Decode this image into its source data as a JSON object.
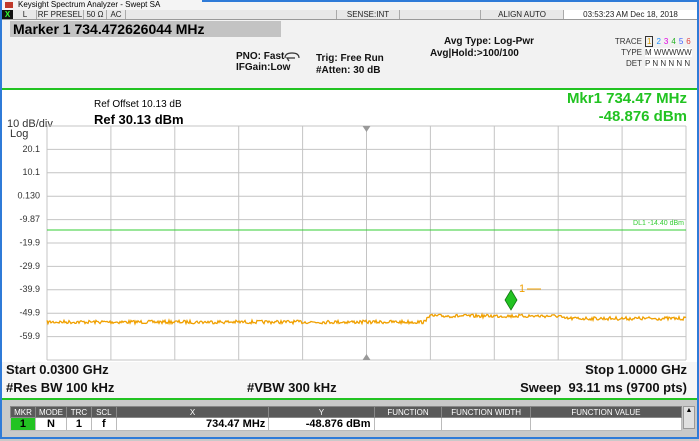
{
  "window": {
    "title": "Keysight Spectrum Analyzer - Swept SA"
  },
  "status_bar": {
    "items": [
      "L",
      "RF PRESEL",
      "50 Ω",
      "AC",
      "SENSE:INT",
      "ALIGN AUTO",
      "03:53:23 AM Dec 18, 2018"
    ]
  },
  "header": {
    "marker": "Marker 1 734.472626044 MHz",
    "pno": "PNO: Fast",
    "ifgain": "IFGain:Low",
    "trig": "Trig: Free Run",
    "atten": "#Atten: 30 dB",
    "avg_type": "Avg Type: Log-Pwr",
    "avg_hold": "Avg|Hold:>100/100",
    "trace_label": "TRACE",
    "trace_numbers": [
      "1",
      "2",
      "3",
      "4",
      "5",
      "6"
    ],
    "type_label": "TYPE",
    "type_values": "M WWWWW",
    "det_label": "DET",
    "det_values": "P N N N N N"
  },
  "display": {
    "scale": "10 dB/div",
    "scale_type": "Log",
    "ref_offset": "Ref Offset 10.13 dB",
    "ref_level": "Ref 30.13 dBm",
    "marker_freq": "Mkr1 734.47 MHz",
    "marker_amp": "-48.876 dBm",
    "y_labels": [
      "20.1",
      "10.1",
      "0.130",
      "-9.87",
      "-19.9",
      "-29.9",
      "-39.9",
      "-49.9",
      "-59.9"
    ],
    "display_line": "DL1 -14.40 dBm",
    "marker_number": "1"
  },
  "footer": {
    "start": "Start 0.0300 GHz",
    "stop": "Stop 1.0000 GHz",
    "rbw": "#Res BW 100 kHz",
    "vbw": "#VBW 300 kHz",
    "sweep": "Sweep  93.11 ms (9700 pts)"
  },
  "marker_table": {
    "columns": [
      "MKR",
      "MODE",
      "TRC",
      "SCL",
      "X",
      "Y",
      "FUNCTION",
      "FUNCTION WIDTH",
      "FUNCTION VALUE"
    ],
    "rows": [
      [
        "1",
        "N",
        "1",
        "f",
        "734.47 MHz",
        "-48.876 dBm"
      ]
    ]
  }
}
